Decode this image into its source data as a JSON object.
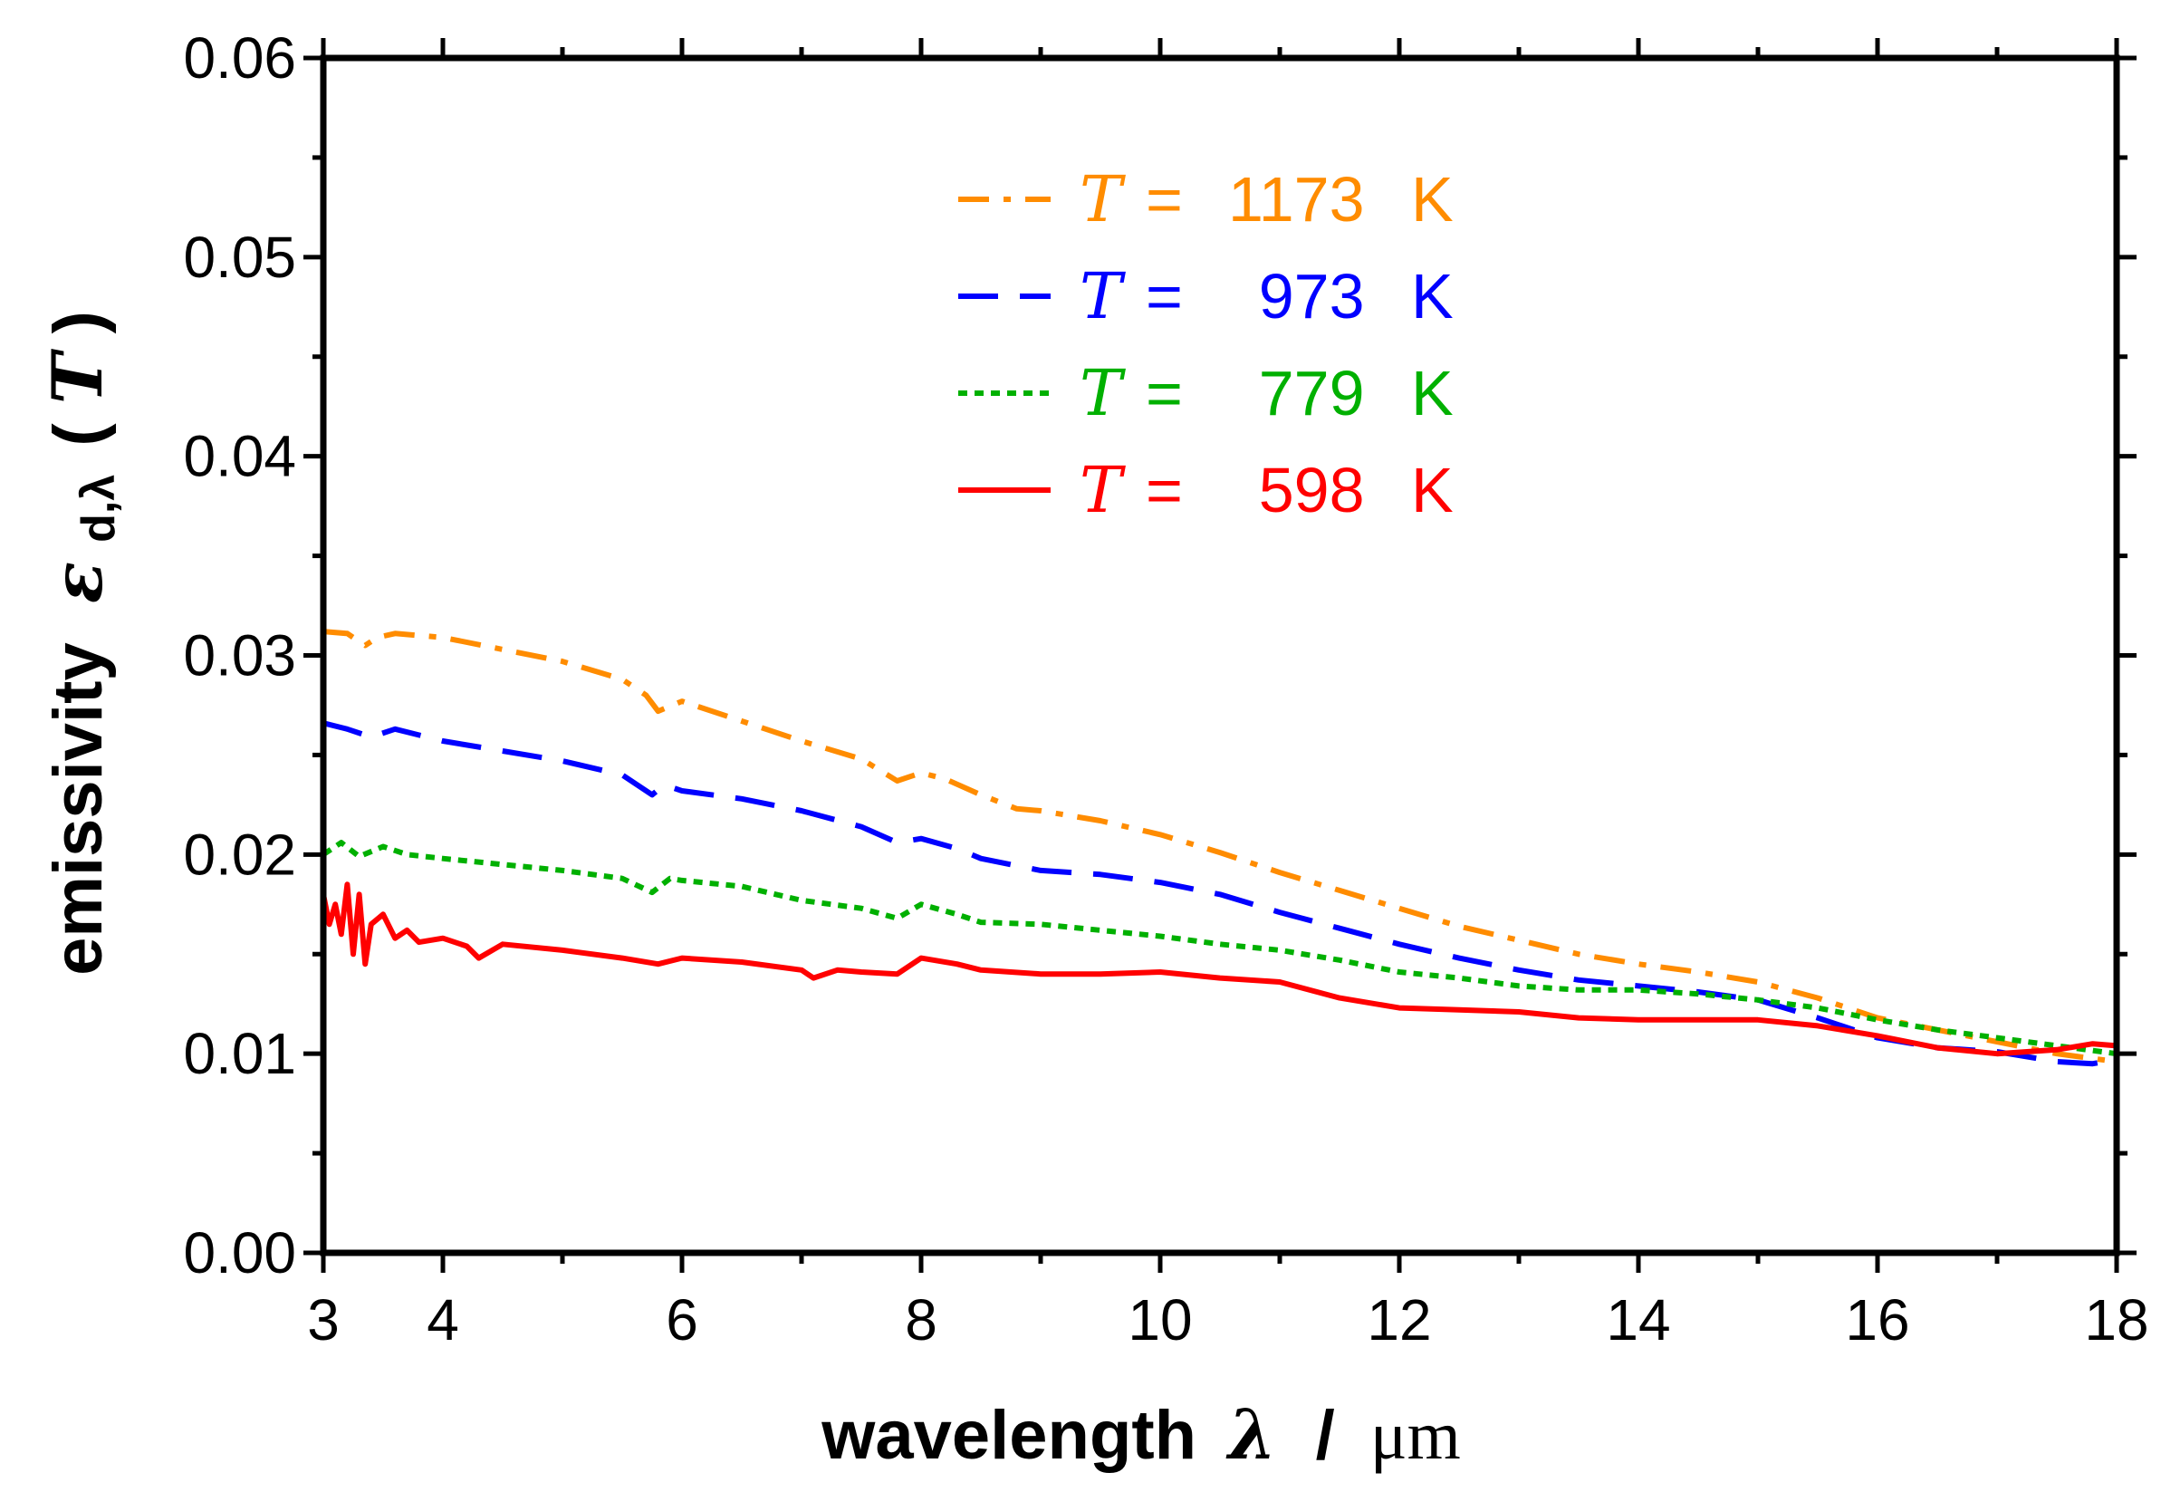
{
  "chart_data": {
    "type": "line",
    "xlabel": {
      "text": "wavelength",
      "symbol": "λ",
      "sep": "/",
      "unit": "μm"
    },
    "ylabel": {
      "text": "emissivity",
      "symbol": "ε",
      "subscript": "d,λ",
      "open": "(",
      "var": "T",
      "close": ")"
    },
    "xlim": [
      3,
      18
    ],
    "ylim": [
      0.0,
      0.06
    ],
    "xticks": [
      "3",
      "4",
      "6",
      "8",
      "10",
      "12",
      "14",
      "16",
      "18"
    ],
    "yticks": [
      "0.00",
      "0.01",
      "0.02",
      "0.03",
      "0.04",
      "0.05",
      "0.06"
    ],
    "legend_position": "top-center",
    "series": [
      {
        "name": "T = 1173 K",
        "T_symbol": "T",
        "eq": "=",
        "value": "1173",
        "unit": "K",
        "color": "#ff8c00",
        "style": "dash-dot",
        "x": [
          3.0,
          3.2,
          3.35,
          3.45,
          3.6,
          4.0,
          4.5,
          5.0,
          5.5,
          5.7,
          5.8,
          6.0,
          6.5,
          7.0,
          7.5,
          7.8,
          8.0,
          8.2,
          8.5,
          8.8,
          9.0,
          9.5,
          10.0,
          10.5,
          11.0,
          11.5,
          12.0,
          12.5,
          13.0,
          13.5,
          14.0,
          14.5,
          15.0,
          15.5,
          16.0,
          16.5,
          17.0,
          17.5,
          18.0
        ],
        "y": [
          0.0312,
          0.0311,
          0.0305,
          0.0309,
          0.0311,
          0.0309,
          0.0303,
          0.0297,
          0.0288,
          0.028,
          0.0272,
          0.0277,
          0.0267,
          0.0257,
          0.0248,
          0.0237,
          0.0241,
          0.0238,
          0.023,
          0.0223,
          0.0222,
          0.0217,
          0.021,
          0.0201,
          0.0191,
          0.0182,
          0.0173,
          0.0164,
          0.0157,
          0.015,
          0.0145,
          0.0141,
          0.0136,
          0.0128,
          0.0118,
          0.0112,
          0.0106,
          0.01,
          0.0096
        ]
      },
      {
        "name": "T = 973 K",
        "T_symbol": "T",
        "eq": "=",
        "value": "973",
        "unit": "K",
        "color": "#0000ff",
        "style": "dashed",
        "x": [
          3.0,
          3.2,
          3.4,
          3.6,
          4.0,
          4.5,
          5.0,
          5.5,
          5.75,
          5.85,
          6.0,
          6.5,
          7.0,
          7.5,
          7.8,
          8.0,
          8.3,
          8.5,
          9.0,
          9.5,
          10.0,
          10.5,
          11.0,
          11.5,
          12.0,
          12.5,
          13.0,
          13.5,
          14.0,
          14.5,
          15.0,
          15.5,
          16.0,
          16.5,
          17.0,
          17.5,
          17.8,
          18.0
        ],
        "y": [
          0.0266,
          0.0263,
          0.0259,
          0.0263,
          0.0257,
          0.0252,
          0.0247,
          0.024,
          0.023,
          0.0235,
          0.0232,
          0.0228,
          0.0222,
          0.0214,
          0.0206,
          0.0208,
          0.0203,
          0.0198,
          0.0192,
          0.019,
          0.0186,
          0.018,
          0.0171,
          0.0163,
          0.0155,
          0.0148,
          0.0142,
          0.0137,
          0.0134,
          0.0131,
          0.0127,
          0.0118,
          0.0108,
          0.0103,
          0.0101,
          0.0096,
          0.0095,
          0.0097
        ]
      },
      {
        "name": "T = 779 K",
        "T_symbol": "T",
        "eq": "=",
        "value": "779",
        "unit": "K",
        "color": "#00b000",
        "style": "dotted",
        "x": [
          3.0,
          3.15,
          3.3,
          3.5,
          3.7,
          4.0,
          4.5,
          5.0,
          5.5,
          5.75,
          5.9,
          6.0,
          6.5,
          7.0,
          7.5,
          7.8,
          8.0,
          8.3,
          8.5,
          9.0,
          9.5,
          10.0,
          10.5,
          11.0,
          11.5,
          12.0,
          12.5,
          13.0,
          13.5,
          14.0,
          14.5,
          15.0,
          15.5,
          16.0,
          16.5,
          17.0,
          17.5,
          18.0
        ],
        "y": [
          0.02,
          0.0206,
          0.0199,
          0.0204,
          0.02,
          0.0198,
          0.0195,
          0.0192,
          0.0188,
          0.0181,
          0.0188,
          0.0187,
          0.0184,
          0.0177,
          0.0173,
          0.0168,
          0.0175,
          0.017,
          0.0166,
          0.0165,
          0.0162,
          0.0159,
          0.0155,
          0.0152,
          0.0147,
          0.0141,
          0.0138,
          0.0134,
          0.0132,
          0.0132,
          0.013,
          0.0127,
          0.0123,
          0.0117,
          0.0112,
          0.0108,
          0.0104,
          0.01
        ]
      },
      {
        "name": "T = 598 K",
        "T_symbol": "T",
        "eq": "=",
        "value": "598",
        "unit": "K",
        "color": "#ff0000",
        "style": "solid",
        "x": [
          3.0,
          3.05,
          3.1,
          3.15,
          3.2,
          3.25,
          3.3,
          3.35,
          3.4,
          3.5,
          3.6,
          3.7,
          3.8,
          4.0,
          4.2,
          4.3,
          4.5,
          5.0,
          5.5,
          5.8,
          6.0,
          6.5,
          7.0,
          7.1,
          7.3,
          7.5,
          7.8,
          8.0,
          8.3,
          8.5,
          9.0,
          9.5,
          10.0,
          10.5,
          11.0,
          11.5,
          12.0,
          12.5,
          13.0,
          13.5,
          14.0,
          14.5,
          15.0,
          15.5,
          16.0,
          16.5,
          17.0,
          17.5,
          17.8,
          18.0
        ],
        "y": [
          0.018,
          0.0165,
          0.0175,
          0.016,
          0.0185,
          0.015,
          0.018,
          0.0145,
          0.0165,
          0.017,
          0.0158,
          0.0162,
          0.0156,
          0.0158,
          0.0154,
          0.0148,
          0.0155,
          0.0152,
          0.0148,
          0.0145,
          0.0148,
          0.0146,
          0.0142,
          0.0138,
          0.0142,
          0.0141,
          0.014,
          0.0148,
          0.0145,
          0.0142,
          0.014,
          0.014,
          0.0141,
          0.0138,
          0.0136,
          0.0128,
          0.0123,
          0.0122,
          0.0121,
          0.0118,
          0.0117,
          0.0117,
          0.0117,
          0.0114,
          0.0109,
          0.0103,
          0.01,
          0.0102,
          0.0105,
          0.0104
        ]
      }
    ]
  }
}
